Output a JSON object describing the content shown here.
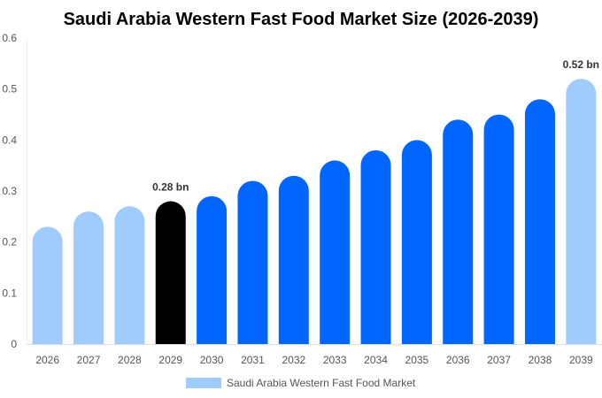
{
  "chart_data": {
    "type": "bar",
    "title": "Saudi Arabia Western Fast Food Market Size (2026-2039)",
    "xlabel": "",
    "ylabel": "",
    "ylim": [
      0,
      0.6
    ],
    "yticks": [
      "0",
      "0.1",
      "0.2",
      "0.3",
      "0.4",
      "0.5",
      "0.6"
    ],
    "categories": [
      "2026",
      "2027",
      "2028",
      "2029",
      "2030",
      "2031",
      "2032",
      "2033",
      "2034",
      "2035",
      "2036",
      "2037",
      "2038",
      "2039"
    ],
    "values": [
      0.23,
      0.26,
      0.27,
      0.28,
      0.29,
      0.32,
      0.33,
      0.36,
      0.38,
      0.4,
      0.44,
      0.45,
      0.48,
      0.52
    ],
    "bar_colors": [
      "#a0cbfd",
      "#a0cbfd",
      "#a0cbfd",
      "#000000",
      "#0066ff",
      "#0066ff",
      "#0066ff",
      "#0066ff",
      "#0066ff",
      "#0066ff",
      "#0066ff",
      "#0066ff",
      "#0066ff",
      "#a0cbfd"
    ],
    "data_labels": [
      {
        "index": 3,
        "text": "0.28 bn"
      },
      {
        "index": 13,
        "text": "0.52 bn"
      }
    ],
    "legend": {
      "label": "Saudi Arabia Western Fast Food Market",
      "color": "#a0cbfd",
      "position": "bottom"
    },
    "grid": false
  }
}
